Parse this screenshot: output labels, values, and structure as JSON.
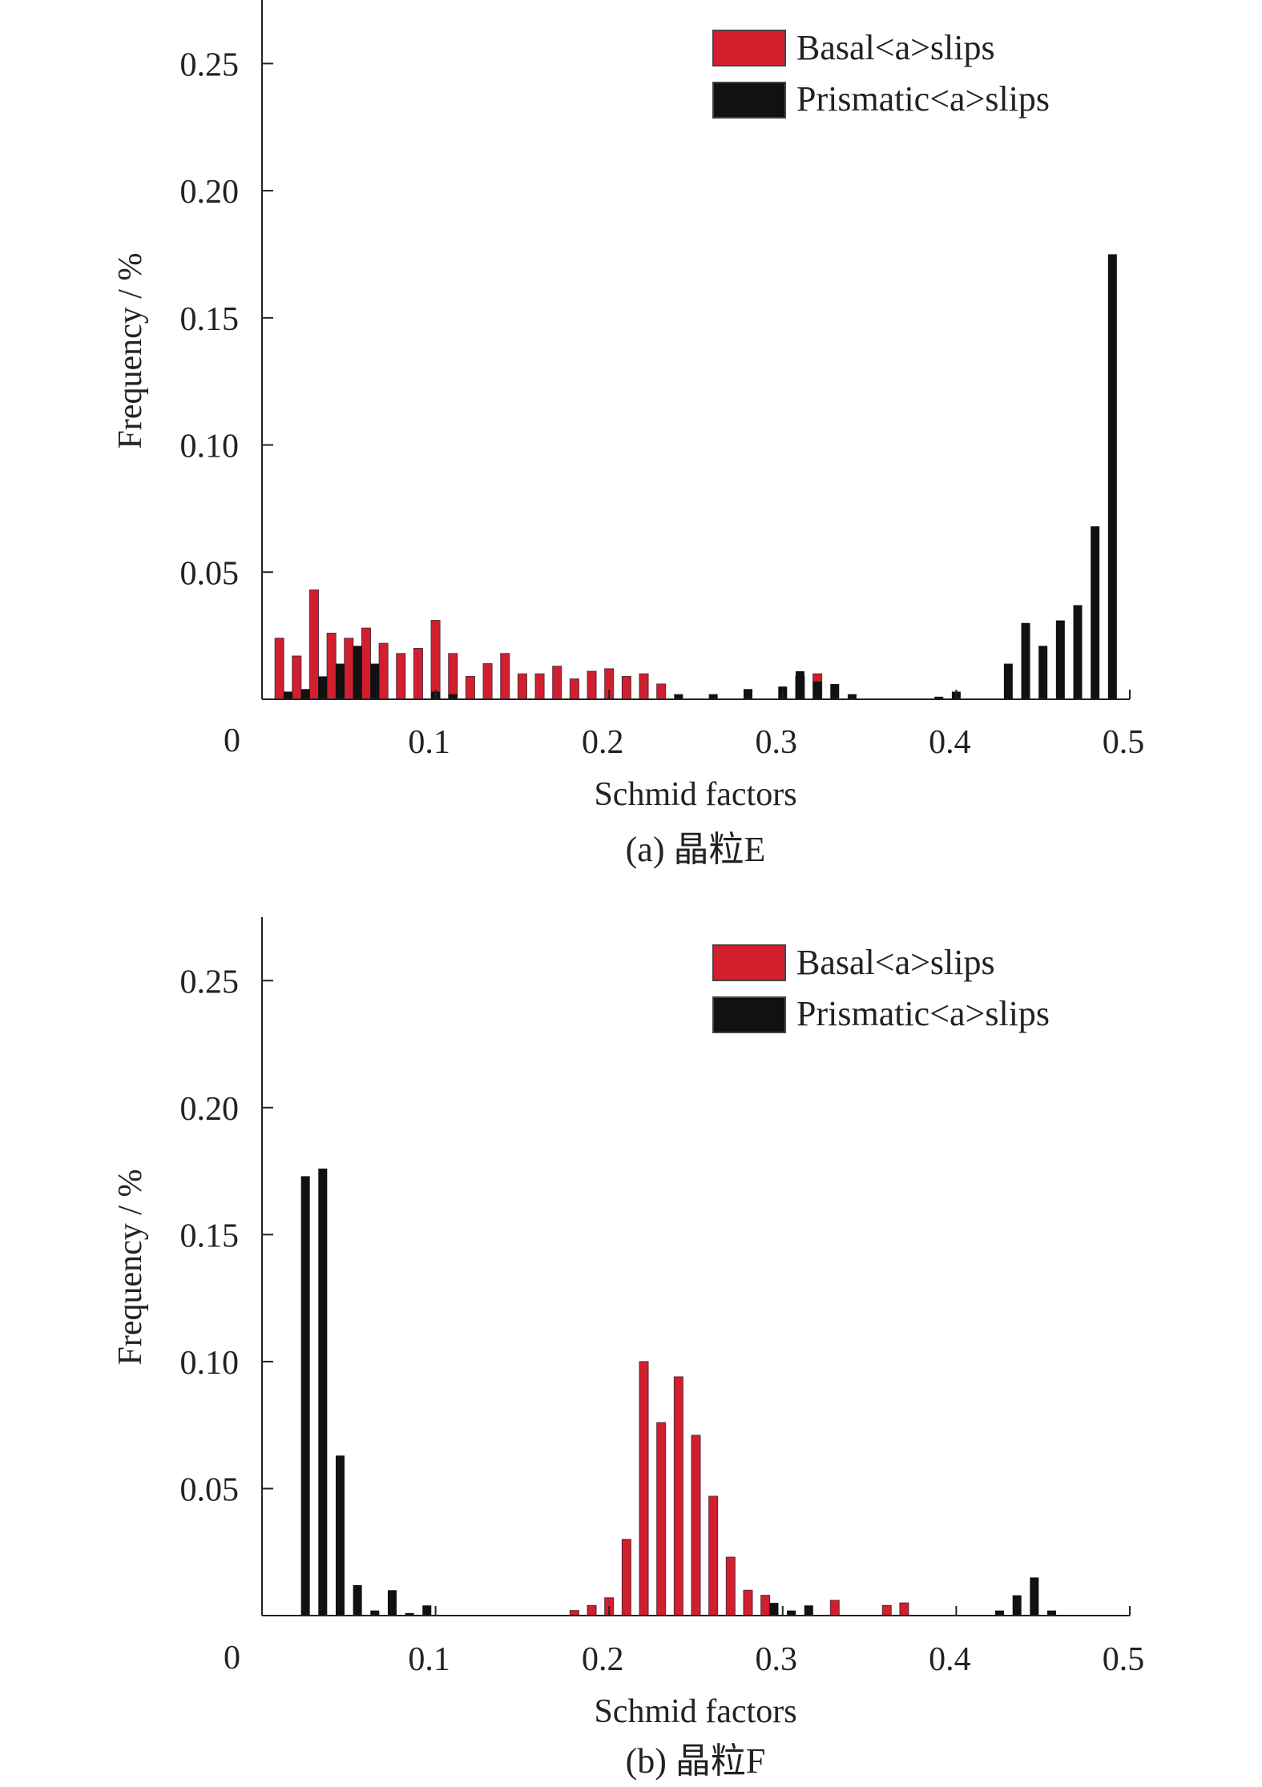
{
  "chart_data": [
    {
      "type": "bar",
      "caption": "(a) 晶粒E",
      "xlabel": "Schmid factors",
      "ylabel": "Frequency / %",
      "xlim": [
        0,
        0.5
      ],
      "ylim": [
        0,
        0.275
      ],
      "xticks": [
        0,
        0.1,
        0.2,
        0.3,
        0.4,
        0.5
      ],
      "xtick_labels": [
        "0",
        "0.1",
        "0.2",
        "0.3",
        "0.4",
        "0.5"
      ],
      "yticks": [
        0,
        0.05,
        0.1,
        0.15,
        0.2,
        0.25
      ],
      "ytick_labels": [
        "0",
        "0.05",
        "0.10",
        "0.15",
        "0.20",
        "0.25"
      ],
      "legend_position": "top-right",
      "colors": {
        "basal": "#d11f2e",
        "prismatic": "#111111"
      },
      "series": [
        {
          "name": "Basal<a>slips",
          "key": "basal",
          "x": [
            0.01,
            0.02,
            0.03,
            0.04,
            0.05,
            0.06,
            0.07,
            0.08,
            0.09,
            0.1,
            0.11,
            0.12,
            0.13,
            0.14,
            0.15,
            0.16,
            0.17,
            0.18,
            0.19,
            0.2,
            0.21,
            0.22,
            0.23,
            0.31,
            0.32
          ],
          "values": [
            0.024,
            0.017,
            0.043,
            0.026,
            0.024,
            0.028,
            0.022,
            0.018,
            0.02,
            0.031,
            0.018,
            0.009,
            0.014,
            0.018,
            0.01,
            0.01,
            0.013,
            0.008,
            0.011,
            0.012,
            0.009,
            0.01,
            0.006,
            0.009,
            0.01
          ]
        },
        {
          "name": "Prismatic<a>slips",
          "key": "prismatic",
          "x": [
            0.015,
            0.025,
            0.035,
            0.045,
            0.055,
            0.065,
            0.1,
            0.11,
            0.24,
            0.26,
            0.28,
            0.3,
            0.31,
            0.32,
            0.33,
            0.34,
            0.39,
            0.4,
            0.43,
            0.44,
            0.45,
            0.46,
            0.47,
            0.48,
            0.49
          ],
          "values": [
            0.003,
            0.004,
            0.009,
            0.014,
            0.021,
            0.014,
            0.003,
            0.002,
            0.002,
            0.002,
            0.004,
            0.005,
            0.011,
            0.007,
            0.006,
            0.002,
            0.001,
            0.003,
            0.014,
            0.03,
            0.021,
            0.031,
            0.037,
            0.068,
            0.175
          ]
        }
      ]
    },
    {
      "type": "bar",
      "caption": "(b) 晶粒F",
      "xlabel": "Schmid factors",
      "ylabel": "Frequency / %",
      "xlim": [
        0,
        0.5
      ],
      "ylim": [
        0,
        0.275
      ],
      "xticks": [
        0,
        0.1,
        0.2,
        0.3,
        0.4,
        0.5
      ],
      "xtick_labels": [
        "0",
        "0.1",
        "0.2",
        "0.3",
        "0.4",
        "0.5"
      ],
      "yticks": [
        0,
        0.05,
        0.1,
        0.15,
        0.2,
        0.25
      ],
      "ytick_labels": [
        "0",
        "0.05",
        "0.10",
        "0.15",
        "0.20",
        "0.25"
      ],
      "legend_position": "top-right",
      "colors": {
        "basal": "#d11f2e",
        "prismatic": "#111111"
      },
      "series": [
        {
          "name": "Basal<a>slips",
          "key": "basal",
          "x": [
            0.18,
            0.19,
            0.2,
            0.21,
            0.22,
            0.23,
            0.24,
            0.25,
            0.26,
            0.27,
            0.28,
            0.29,
            0.33,
            0.36,
            0.37
          ],
          "values": [
            0.002,
            0.004,
            0.007,
            0.03,
            0.1,
            0.076,
            0.094,
            0.071,
            0.047,
            0.023,
            0.01,
            0.008,
            0.006,
            0.004,
            0.005
          ]
        },
        {
          "name": "Prismatic<a>slips",
          "key": "prismatic",
          "x": [
            0.025,
            0.035,
            0.045,
            0.055,
            0.065,
            0.075,
            0.085,
            0.095,
            0.295,
            0.305,
            0.315,
            0.425,
            0.435,
            0.445,
            0.455
          ],
          "values": [
            0.173,
            0.176,
            0.063,
            0.012,
            0.002,
            0.01,
            0.001,
            0.004,
            0.005,
            0.002,
            0.004,
            0.002,
            0.008,
            0.015,
            0.002
          ]
        }
      ]
    }
  ]
}
